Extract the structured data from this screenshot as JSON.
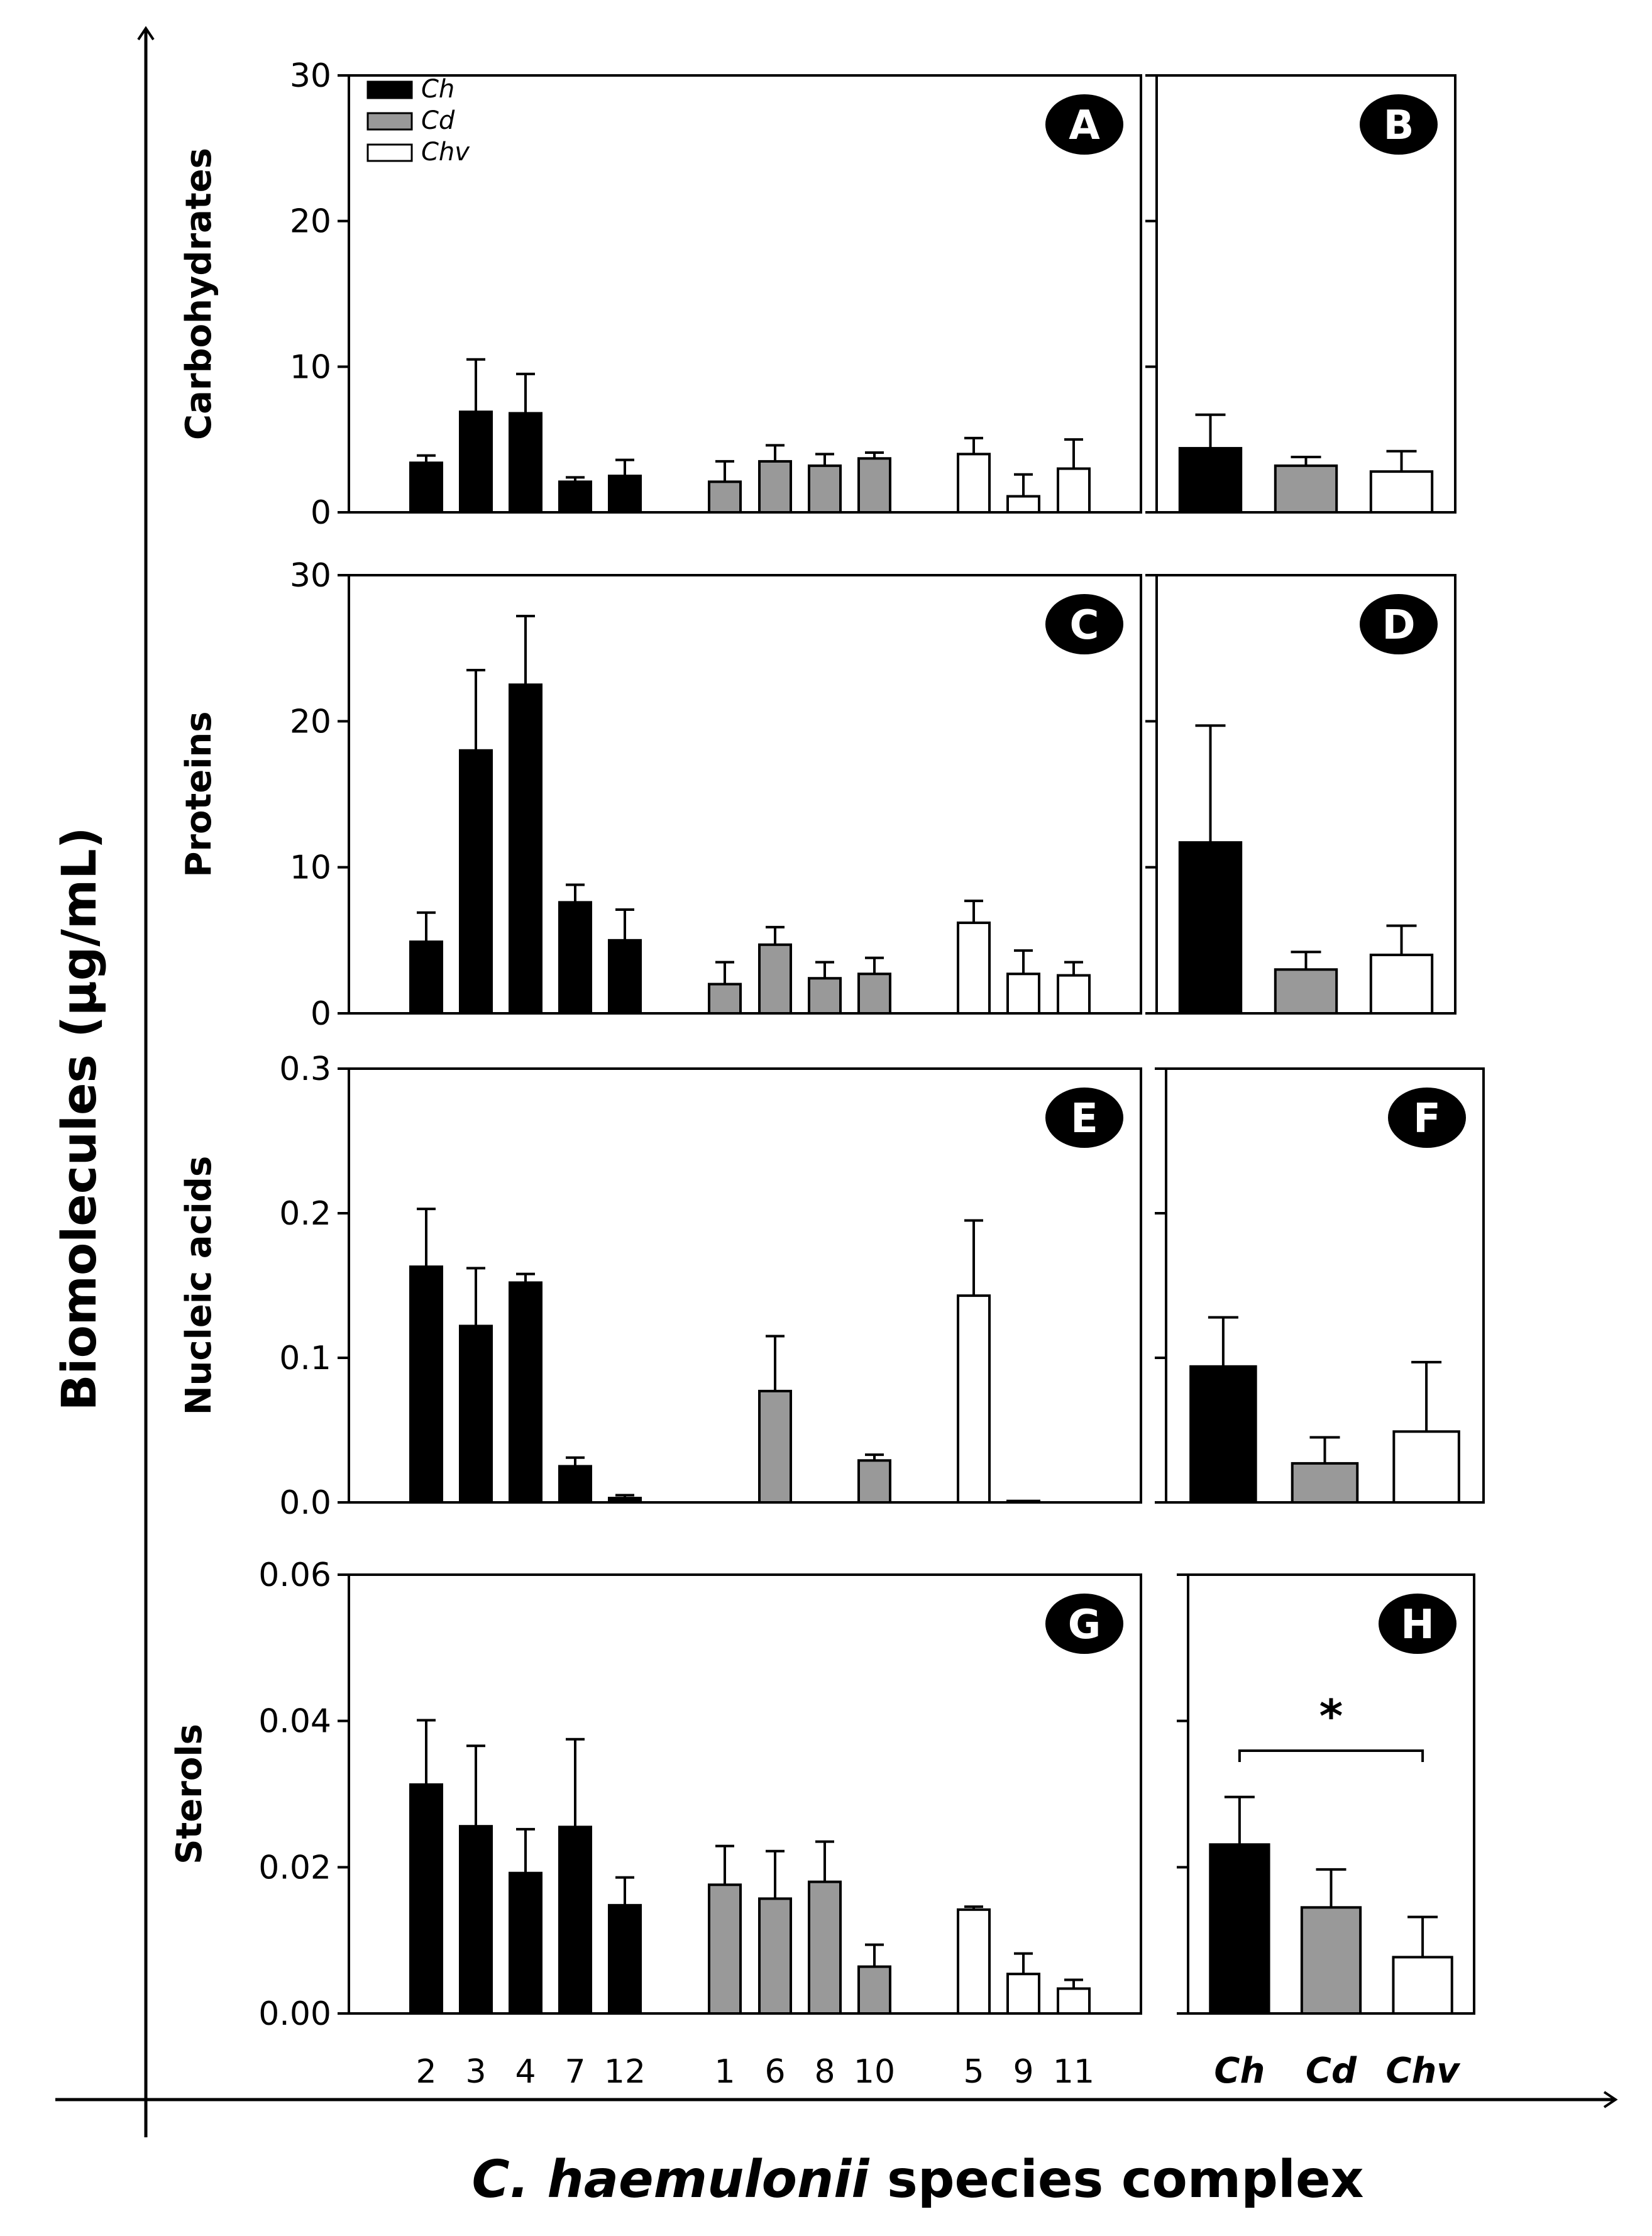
{
  "figure": {
    "y_axis_title": "Biomolecules (µg/mL)",
    "x_axis_title_italic": "C. haemulonii",
    "x_axis_title_rest": " species complex",
    "legend": [
      {
        "label": "Ch",
        "color": "#000000"
      },
      {
        "label": "Cd",
        "color": "#999999"
      },
      {
        "label": "Chv",
        "color": "#ffffff"
      }
    ],
    "colors": {
      "Ch": "#000000",
      "Cd": "#999999",
      "Chv": "#ffffff"
    }
  },
  "chart_data": [
    {
      "panel": "A",
      "type": "bar",
      "ylabel": "Carbohydrates",
      "ylim": [
        0,
        30
      ],
      "yticks": [
        "0",
        "10",
        "20",
        "30"
      ],
      "categories": [
        "2",
        "3",
        "4",
        "7",
        "12",
        "1",
        "6",
        "8",
        "10",
        "5",
        "9",
        "11"
      ],
      "groups": [
        "Ch",
        "Ch",
        "Ch",
        "Ch",
        "Ch",
        "Cd",
        "Cd",
        "Cd",
        "Cd",
        "Chv",
        "Chv",
        "Chv"
      ],
      "values": [
        3.4,
        6.9,
        6.8,
        2.1,
        2.5,
        2.1,
        3.5,
        3.2,
        3.7,
        4.0,
        1.1,
        3.0
      ],
      "errors": [
        0.5,
        3.6,
        2.7,
        0.3,
        1.1,
        1.4,
        1.1,
        0.8,
        0.4,
        1.1,
        1.5,
        2.0
      ]
    },
    {
      "panel": "B",
      "type": "bar",
      "ylim": [
        0,
        30
      ],
      "categories": [
        "Ch",
        "Cd",
        "Chv"
      ],
      "values": [
        4.4,
        3.2,
        2.8
      ],
      "errors": [
        2.3,
        0.6,
        1.4
      ]
    },
    {
      "panel": "C",
      "type": "bar",
      "ylabel": "Proteins",
      "ylim": [
        0,
        30
      ],
      "yticks": [
        "0",
        "10",
        "20",
        "30"
      ],
      "categories": [
        "2",
        "3",
        "4",
        "7",
        "12",
        "1",
        "6",
        "8",
        "10",
        "5",
        "9",
        "11"
      ],
      "groups": [
        "Ch",
        "Ch",
        "Ch",
        "Ch",
        "Ch",
        "Cd",
        "Cd",
        "Cd",
        "Cd",
        "Chv",
        "Chv",
        "Chv"
      ],
      "values": [
        4.9,
        18.0,
        22.5,
        7.6,
        5.0,
        2.0,
        4.7,
        2.4,
        2.7,
        6.2,
        2.7,
        2.6
      ],
      "errors": [
        2.0,
        5.5,
        4.7,
        1.2,
        2.1,
        1.5,
        1.2,
        1.1,
        1.1,
        1.5,
        1.6,
        0.9
      ]
    },
    {
      "panel": "D",
      "type": "bar",
      "ylim": [
        0,
        30
      ],
      "categories": [
        "Ch",
        "Cd",
        "Chv"
      ],
      "values": [
        11.7,
        3.0,
        4.0
      ],
      "errors": [
        8.0,
        1.2,
        2.0
      ]
    },
    {
      "panel": "E",
      "type": "bar",
      "ylabel": "Nucleic acids",
      "ylim": [
        0,
        0.3
      ],
      "yticks": [
        "0.0",
        "0.1",
        "0.2",
        "0.3"
      ],
      "categories": [
        "2",
        "3",
        "4",
        "7",
        "12",
        "1",
        "6",
        "8",
        "10",
        "5",
        "9",
        "11"
      ],
      "groups": [
        "Ch",
        "Ch",
        "Ch",
        "Ch",
        "Ch",
        "Cd",
        "Cd",
        "Cd",
        "Cd",
        "Chv",
        "Chv",
        "Chv"
      ],
      "values": [
        0.163,
        0.122,
        0.152,
        0.025,
        0.003,
        0.0,
        0.077,
        0.0,
        0.029,
        0.143,
        0.001,
        0.0
      ],
      "errors": [
        0.04,
        0.04,
        0.006,
        0.006,
        0.002,
        0.0,
        0.038,
        0.0,
        0.004,
        0.052,
        0.0,
        0.0
      ]
    },
    {
      "panel": "F",
      "type": "bar",
      "ylim": [
        0,
        0.3
      ],
      "categories": [
        "Ch",
        "Cd",
        "Chv"
      ],
      "values": [
        0.094,
        0.027,
        0.049
      ],
      "errors": [
        0.034,
        0.018,
        0.048
      ]
    },
    {
      "panel": "G",
      "type": "bar",
      "ylabel": "Sterols",
      "ylim": [
        0,
        0.06
      ],
      "yticks": [
        "0.00",
        "0.02",
        "0.04",
        "0.06"
      ],
      "categories": [
        "2",
        "3",
        "4",
        "7",
        "12",
        "1",
        "6",
        "8",
        "10",
        "5",
        "9",
        "11"
      ],
      "groups": [
        "Ch",
        "Ch",
        "Ch",
        "Ch",
        "Ch",
        "Cd",
        "Cd",
        "Cd",
        "Cd",
        "Chv",
        "Chv",
        "Chv"
      ],
      "values": [
        0.0313,
        0.0256,
        0.0192,
        0.0255,
        0.0148,
        0.0176,
        0.0157,
        0.018,
        0.0064,
        0.0142,
        0.0054,
        0.0034
      ],
      "errors": [
        0.0088,
        0.011,
        0.006,
        0.012,
        0.0038,
        0.0053,
        0.0065,
        0.0055,
        0.003,
        0.0004,
        0.0028,
        0.0012
      ]
    },
    {
      "panel": "H",
      "type": "bar",
      "ylim": [
        0,
        0.06
      ],
      "categories": [
        "Ch",
        "Cd",
        "Chv"
      ],
      "values": [
        0.0231,
        0.0145,
        0.0077
      ],
      "errors": [
        0.0065,
        0.0052,
        0.0055
      ],
      "significance": {
        "label": "*",
        "between": [
          "Ch",
          "Chv"
        ]
      }
    }
  ]
}
